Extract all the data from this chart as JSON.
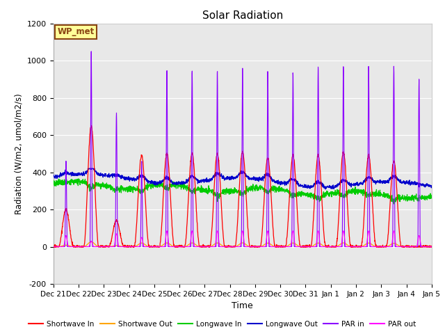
{
  "title": "Solar Radiation",
  "xlabel": "Time",
  "ylabel": "Radiation (W/m2, umol/m2/s)",
  "ylim": [
    -200,
    1200
  ],
  "yticks": [
    -200,
    0,
    200,
    400,
    600,
    800,
    1000,
    1200
  ],
  "x_labels": [
    "Dec 21",
    "Dec 22",
    "Dec 23",
    "Dec 24",
    "Dec 25",
    "Dec 26",
    "Dec 27",
    "Dec 28",
    "Dec 29",
    "Dec 30",
    "Dec 31",
    "Jan 1",
    "Jan 2",
    "Jan 3",
    "Jan 4",
    "Jan 5"
  ],
  "n_days": 15,
  "legend": [
    "Shortwave In",
    "Shortwave Out",
    "Longwave In",
    "Longwave Out",
    "PAR in",
    "PAR out"
  ],
  "colors": {
    "shortwave_in": "#FF0000",
    "shortwave_out": "#FFA500",
    "longwave_in": "#00CC00",
    "longwave_out": "#0000CC",
    "par_in": "#8B00FF",
    "par_out": "#FF00FF"
  },
  "label_box": "WP_met",
  "label_box_color": "#FFFF99",
  "label_box_border": "#8B4513",
  "background_color": "#E8E8E8",
  "grid_color": "#FFFFFF",
  "sw_peaks": [
    200,
    650,
    140,
    490,
    500,
    500,
    500,
    510,
    480,
    490,
    490,
    510,
    490,
    460,
    0
  ],
  "par_peaks": [
    460,
    1050,
    720,
    460,
    950,
    950,
    950,
    970,
    950,
    940,
    970,
    970,
    970,
    970,
    900
  ],
  "par_out_peaks": [
    60,
    30,
    70,
    50,
    85,
    85,
    85,
    85,
    85,
    85,
    85,
    85,
    85,
    85,
    60
  ]
}
